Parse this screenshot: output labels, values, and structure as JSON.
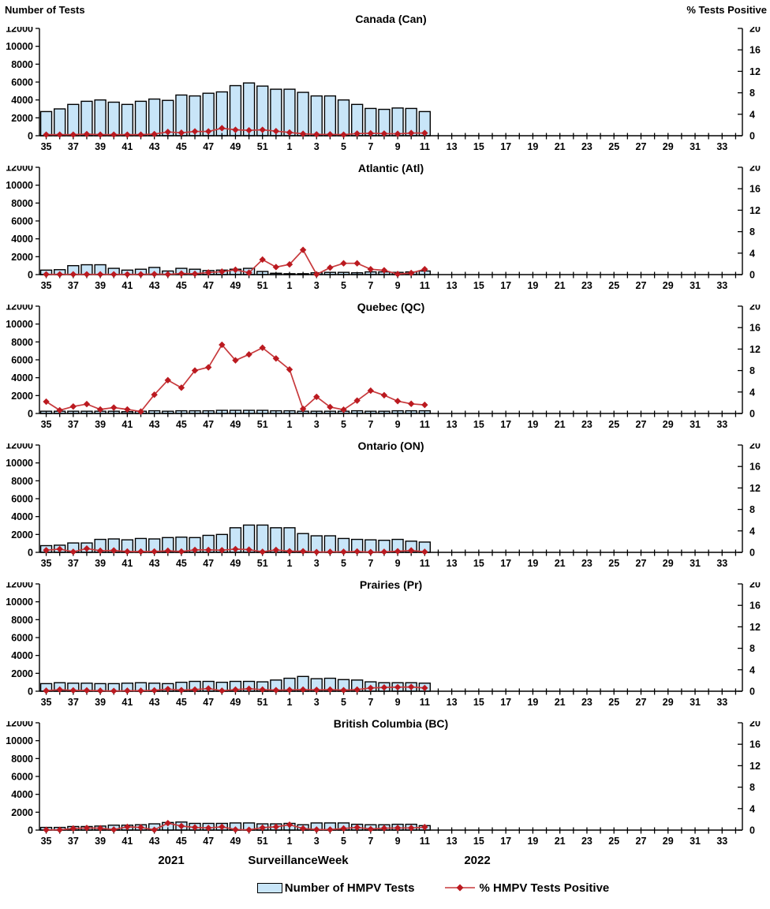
{
  "axis_titles": {
    "left": "Number of Tests",
    "right": "% Tests Positive"
  },
  "x_axis": {
    "weeks": [
      "35",
      "36",
      "37",
      "38",
      "39",
      "40",
      "41",
      "42",
      "43",
      "44",
      "45",
      "46",
      "47",
      "48",
      "49",
      "50",
      "51",
      "52",
      "1",
      "2",
      "3",
      "4",
      "5",
      "6",
      "7",
      "8",
      "9",
      "10",
      "11",
      "12",
      "13",
      "14",
      "15",
      "16",
      "17",
      "18",
      "19",
      "20",
      "21",
      "22",
      "23",
      "24",
      "25",
      "26",
      "27",
      "28",
      "29",
      "30",
      "31",
      "32",
      "33",
      "34"
    ],
    "labeled_ticks": [
      "35",
      "37",
      "39",
      "41",
      "43",
      "45",
      "47",
      "49",
      "51",
      "1",
      "3",
      "5",
      "7",
      "9",
      "11",
      "13",
      "15",
      "17",
      "19",
      "21",
      "23",
      "25",
      "27",
      "29",
      "31",
      "33"
    ],
    "year_left": "2021",
    "center_label": "SurveillanceWeek",
    "year_right": "2022"
  },
  "y_left": {
    "min": 0,
    "max": 12000,
    "ticks": [
      0,
      2000,
      4000,
      6000,
      8000,
      10000,
      12000
    ]
  },
  "y_right": {
    "min": 0,
    "max": 20,
    "ticks": [
      0,
      4,
      8,
      12,
      16,
      20
    ]
  },
  "legend": {
    "tests_label": "Number of HMPV Tests",
    "positive_label": "% HMPV Tests Positive"
  },
  "colors": {
    "bar_fill": "#c8e5f8",
    "bar_border": "#000000",
    "line": "#c7393c",
    "marker": "#bb1a20",
    "axis": "#000000"
  },
  "chart_data": [
    {
      "type": "bar+line",
      "title": "Canada (Can)",
      "xlabel": "Surveillance Week",
      "ylabel_left": "Number of Tests",
      "ylabel_right": "% Tests Positive",
      "data_weeks": "2021 w35 - 2022 w11",
      "tests": [
        2700,
        3000,
        3500,
        3850,
        4000,
        3750,
        3500,
        3850,
        4100,
        3950,
        4550,
        4450,
        4750,
        4900,
        5600,
        5900,
        5550,
        5200,
        5200,
        4850,
        4450,
        4450,
        4000,
        3500,
        3050,
        2950,
        3100,
        3050,
        2700
      ],
      "pct_positive": [
        0.2,
        0.2,
        0.2,
        0.3,
        0.2,
        0.2,
        0.2,
        0.2,
        0.3,
        0.7,
        0.55,
        0.8,
        0.8,
        1.4,
        1.1,
        1.0,
        1.1,
        0.85,
        0.6,
        0.35,
        0.25,
        0.25,
        0.2,
        0.4,
        0.45,
        0.4,
        0.35,
        0.5,
        0.5
      ]
    },
    {
      "type": "bar+line",
      "title": "Atlantic (Atl)",
      "tests": [
        500,
        550,
        1000,
        1100,
        1100,
        700,
        500,
        600,
        800,
        400,
        700,
        600,
        450,
        500,
        600,
        700,
        350,
        150,
        100,
        100,
        200,
        250,
        250,
        200,
        300,
        300,
        250,
        300,
        400
      ],
      "pct_positive": [
        0.05,
        0.05,
        0.05,
        0.05,
        0.05,
        0.05,
        0.05,
        0.05,
        0.1,
        0.05,
        0.2,
        0.15,
        0.4,
        0.55,
        0.9,
        0.35,
        2.8,
        1.4,
        1.9,
        4.6,
        0.05,
        1.3,
        2.1,
        2.1,
        1.0,
        0.8,
        0.1,
        0.3,
        1.0
      ]
    },
    {
      "type": "bar+line",
      "title": "Quebec (QC)",
      "tests": [
        250,
        250,
        250,
        250,
        250,
        250,
        200,
        250,
        300,
        250,
        300,
        300,
        300,
        350,
        350,
        350,
        350,
        300,
        300,
        250,
        250,
        250,
        250,
        300,
        250,
        250,
        300,
        300,
        300
      ],
      "pct_positive": [
        2.2,
        0.6,
        1.3,
        1.75,
        0.75,
        1.1,
        0.75,
        0.35,
        3.5,
        6.2,
        4.8,
        8.0,
        8.6,
        12.8,
        9.9,
        11.0,
        12.25,
        10.25,
        8.2,
        0.85,
        3.1,
        1.2,
        0.7,
        2.4,
        4.25,
        3.4,
        2.3,
        1.8,
        1.6
      ]
    },
    {
      "type": "bar+line",
      "title": "Ontario (ON)",
      "tests": [
        750,
        800,
        1050,
        1050,
        1450,
        1500,
        1400,
        1550,
        1500,
        1650,
        1700,
        1650,
        1900,
        2000,
        2750,
        3050,
        3050,
        2750,
        2750,
        2100,
        1850,
        1850,
        1550,
        1450,
        1400,
        1350,
        1450,
        1250,
        1150
      ],
      "pct_positive": [
        0.4,
        0.6,
        0.1,
        0.7,
        0.3,
        0.35,
        0.15,
        0.15,
        0.15,
        0.3,
        0.15,
        0.45,
        0.45,
        0.4,
        0.6,
        0.5,
        0.1,
        0.45,
        0.2,
        0.2,
        0.05,
        0.1,
        0.1,
        0.15,
        0.05,
        0.1,
        0.2,
        0.35,
        0.1
      ]
    },
    {
      "type": "bar+line",
      "title": "Prairies (Pr)",
      "tests": [
        850,
        950,
        900,
        900,
        850,
        850,
        900,
        950,
        900,
        850,
        1000,
        1100,
        1100,
        1000,
        1100,
        1100,
        1050,
        1250,
        1450,
        1650,
        1400,
        1450,
        1300,
        1250,
        1050,
        950,
        950,
        950,
        900
      ],
      "pct_positive": [
        0.1,
        0.3,
        0.15,
        0.15,
        0.1,
        0.05,
        0.1,
        0.1,
        0.15,
        0.4,
        0.2,
        0.3,
        0.5,
        0.1,
        0.3,
        0.45,
        0.3,
        0.2,
        0.25,
        0.3,
        0.25,
        0.3,
        0.2,
        0.3,
        0.6,
        0.7,
        0.75,
        0.8,
        0.6
      ]
    },
    {
      "type": "bar+line",
      "title": "British Columbia (BC)",
      "tests": [
        300,
        300,
        400,
        400,
        450,
        550,
        550,
        600,
        700,
        850,
        900,
        750,
        750,
        750,
        800,
        800,
        700,
        700,
        750,
        600,
        800,
        800,
        800,
        650,
        600,
        600,
        650,
        650,
        500
      ],
      "pct_positive": [
        0.05,
        0.05,
        0.3,
        0.4,
        0.35,
        0.1,
        0.6,
        0.5,
        0.05,
        1.3,
        0.75,
        0.5,
        0.4,
        0.6,
        0.1,
        0.05,
        0.45,
        0.6,
        1.0,
        0.3,
        0.1,
        0.1,
        0.3,
        0.5,
        0.2,
        0.35,
        0.4,
        0.4,
        0.55
      ]
    }
  ]
}
